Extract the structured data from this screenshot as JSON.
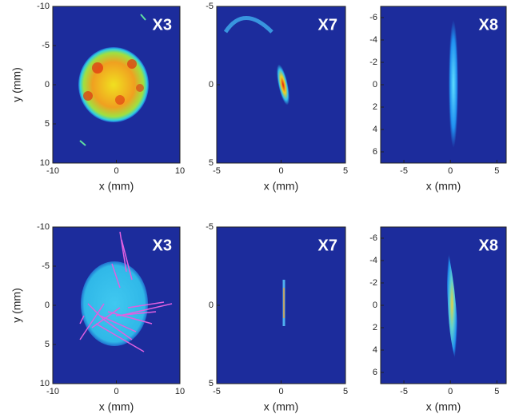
{
  "chart_data": [
    {
      "type": "heatmap",
      "title": "X3",
      "xlabel": "x (mm)",
      "ylabel": "y (mm)",
      "xlim": [
        -10,
        10
      ],
      "ylim": [
        10,
        -10
      ],
      "xticks": [
        -10,
        0,
        10
      ],
      "yticks": [
        -10,
        -5,
        0,
        5,
        10
      ]
    },
    {
      "type": "heatmap",
      "title": "X7",
      "xlabel": "x (mm)",
      "xlim": [
        -5,
        5
      ],
      "ylim": [
        5,
        -5
      ],
      "xticks": [
        -5,
        0,
        5
      ],
      "yticks": [
        -5,
        0,
        5
      ]
    },
    {
      "type": "heatmap",
      "title": "X8",
      "xlabel": "x (mm)",
      "xlim": [
        -7.5,
        6
      ],
      "ylim": [
        7,
        -7
      ],
      "xticks": [
        -5,
        0,
        5
      ],
      "yticks": [
        -6,
        -4,
        -2,
        0,
        2,
        4,
        6
      ]
    },
    {
      "type": "heatmap",
      "title": "X3",
      "xlabel": "x (mm)",
      "ylabel": "y (mm)",
      "xlim": [
        -10,
        10
      ],
      "ylim": [
        10,
        -10
      ],
      "xticks": [
        -10,
        0,
        10
      ],
      "yticks": [
        -10,
        -5,
        0,
        5,
        10
      ]
    },
    {
      "type": "heatmap",
      "title": "X7",
      "xlabel": "x (mm)",
      "xlim": [
        -5,
        5
      ],
      "ylim": [
        5,
        -5
      ],
      "xticks": [
        -5,
        0,
        5
      ],
      "yticks": [
        -5,
        0,
        5
      ]
    },
    {
      "type": "heatmap",
      "title": "X8",
      "xlabel": "x (mm)",
      "xlim": [
        -7.5,
        6
      ],
      "ylim": [
        7,
        -7
      ],
      "xticks": [
        -5,
        0,
        5
      ],
      "yticks": [
        -6,
        -4,
        -2,
        0,
        2,
        4,
        6
      ]
    }
  ]
}
